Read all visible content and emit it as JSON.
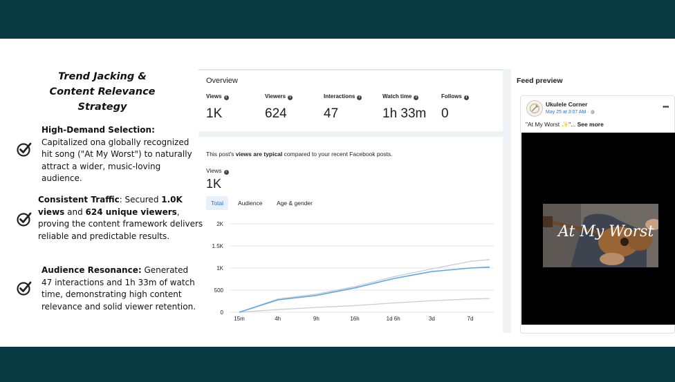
{
  "slide": {
    "title_line1": "Trend Jacking &",
    "title_line2": "Content Relevance",
    "title_line3": "Strategy",
    "points": [
      {
        "heading": "High-Demand Selection:",
        "text": " Capitalized ona globally recognized hit song (\"At My Worst\") to naturally attract a wider, music-loving audience."
      },
      {
        "heading": "Consistent Traffic",
        "text_a": ": Secured ",
        "bold_a": "1.0K views",
        "text_b": " and ",
        "bold_b": "624 unique viewers",
        "text_c": ", proving the content framework delivers reliable and predictable results."
      },
      {
        "heading": "Audience Resonance:",
        "text": " Generated 47 interactions and 1h 33m of watch time, demonstrating high content relevance and solid viewer retention."
      }
    ],
    "check_icon": "check-circle-icon"
  },
  "overview": {
    "title": "Overview",
    "metrics": [
      {
        "label": "Views",
        "value": "1K"
      },
      {
        "label": "Viewers",
        "value": "624"
      },
      {
        "label": "Interactions",
        "value": "47"
      },
      {
        "label": "Watch time",
        "value": "1h 33m"
      },
      {
        "label": "Follows",
        "value": "0"
      }
    ],
    "info_icon": "i"
  },
  "views_section": {
    "typical_prefix": "This post's ",
    "typical_bold": "views are typical",
    "typical_suffix": " compared to your recent Facebook posts.",
    "views_label": "Views",
    "views_value": "1K",
    "tabs": [
      "Total",
      "Audience",
      "Age & gender"
    ],
    "active_tab": "Total"
  },
  "chart_data": {
    "type": "line",
    "x": [
      "15m",
      "4h",
      "9h",
      "16h",
      "1d 6h",
      "3d",
      "7d"
    ],
    "yticks": [
      "0",
      "500",
      "1K",
      "1.5K",
      "2K"
    ],
    "ylim": [
      0,
      2000
    ],
    "series": [
      {
        "color": "#5aa7e8",
        "values": [
          0,
          280,
          380,
          550,
          760,
          920,
          1000
        ]
      },
      {
        "color": "#c8ccd1",
        "values": [
          0,
          300,
          410,
          580,
          800,
          980,
          1150
        ]
      },
      {
        "color": "#c8ccd1",
        "values": [
          0,
          60,
          110,
          150,
          210,
          260,
          300
        ]
      }
    ]
  },
  "feed": {
    "title": "Feed preview",
    "page_name": "Ukulele Corner",
    "post_meta": "May 25 at 3:07 AM · ",
    "more": "•••",
    "caption_text": "\"At My Worst ✨\"... ",
    "caption_more": "See more",
    "video_overlay": "At My Worst"
  },
  "colors": {
    "band": "#063a40",
    "accent": "#1b74e4",
    "series_main": "#5aa7e8"
  }
}
